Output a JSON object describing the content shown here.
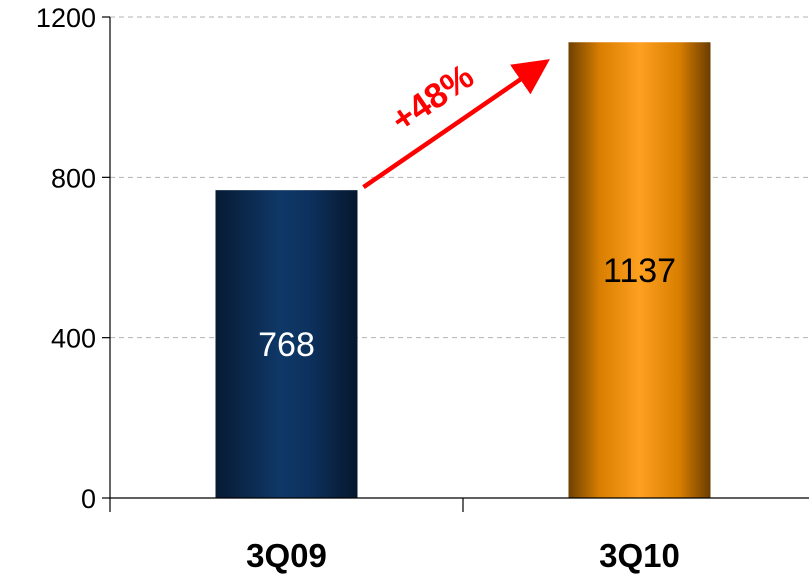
{
  "chart_data": {
    "type": "bar",
    "title": "",
    "xlabel": "",
    "ylabel": "",
    "categories": [
      "3Q09",
      "3Q10"
    ],
    "values": [
      768,
      1137
    ],
    "data_labels": [
      "768",
      "1137"
    ],
    "ylim": [
      0,
      1200
    ],
    "yticks": [
      0,
      400,
      800,
      1200
    ],
    "ytick_labels": [
      "0",
      "400",
      "800",
      "1200"
    ],
    "grid": true,
    "legend": "none",
    "annotation": {
      "text": "+48%",
      "from_category": "3Q09",
      "to_category": "3Q10",
      "color": "#ff0000"
    },
    "colors": {
      "bar_1": "#0a2a52",
      "bar_2": "#f08c00",
      "data_label_1": "#ffffff",
      "data_label_2": "#000000",
      "gridline": "#b3b3b3",
      "axis": "#000000"
    }
  }
}
